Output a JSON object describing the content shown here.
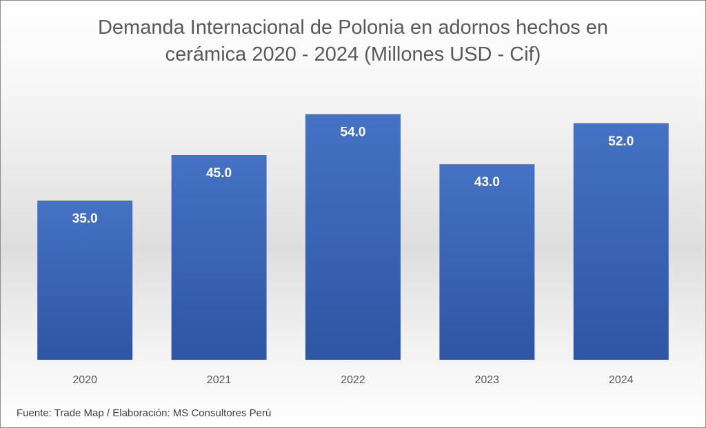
{
  "chart_data": {
    "type": "bar",
    "title_lines": [
      "Demanda Internacional de Polonia en adornos hechos en",
      "cerámica 2020 - 2024 (Millones USD - Cif)"
    ],
    "categories": [
      "2020",
      "2021",
      "2022",
      "2023",
      "2024"
    ],
    "values": [
      35.0,
      45.0,
      54.0,
      43.0,
      52.0
    ],
    "data_labels": [
      "35.0",
      "45.0",
      "54.0",
      "43.0",
      "52.0"
    ],
    "ylim": [
      0,
      60
    ],
    "grid": false,
    "legend": "none",
    "bar_color_top": "#4472c4",
    "bar_color_bottom": "#2f55a4",
    "label_color": "#ffffff",
    "axis_label_color": "#595959"
  },
  "source_note": "Fuente: Trade Map / Elaboración: MS Consultores Perú"
}
